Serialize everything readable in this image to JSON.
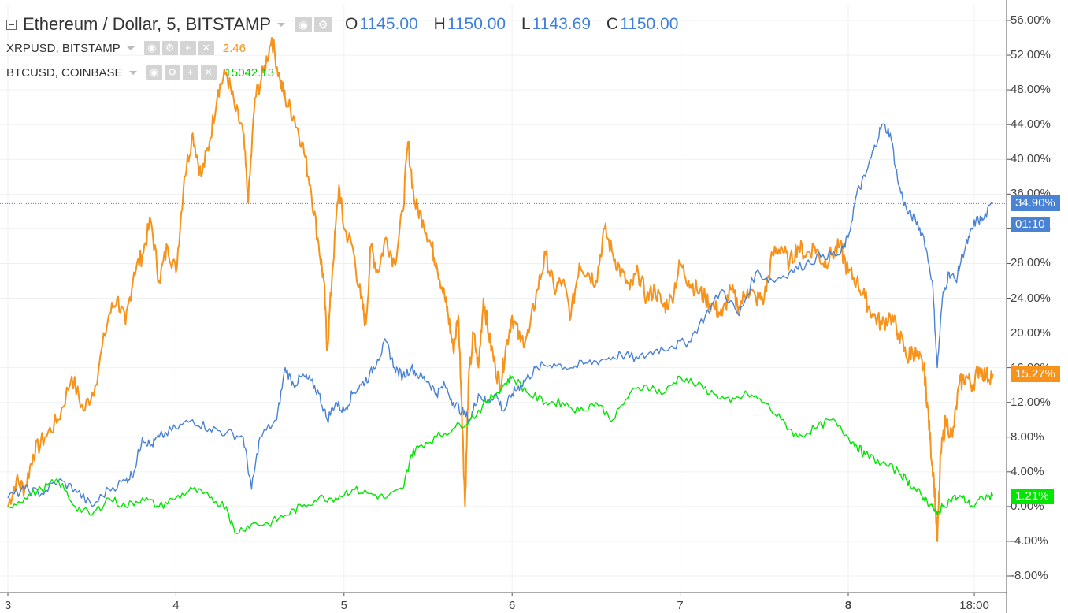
{
  "header": {
    "title": "Ethereum / Dollar, 5, BITSTAMP",
    "ohlc": [
      {
        "key": "O",
        "value": "1145.00"
      },
      {
        "key": "H",
        "value": "1150.00"
      },
      {
        "key": "L",
        "value": "1143.69"
      },
      {
        "key": "C",
        "value": "1150.00"
      }
    ]
  },
  "comparisons": [
    {
      "symbol": "XRPUSD, BITSTAMP",
      "value": "2.46",
      "color": "#f7931a"
    },
    {
      "symbol": "BTCUSD, COINBASE",
      "value": "15042.13",
      "color": "#00e600"
    }
  ],
  "price_tags": {
    "eth": "34.90%",
    "countdown": "01:10",
    "xrp": "15.27%",
    "btc": "1.21%"
  },
  "icons": [
    "eye-icon",
    "gear-icon",
    "plus-icon",
    "close-icon"
  ],
  "chart_data": {
    "type": "line",
    "y_unit": "percent change",
    "ylim": [
      -10,
      58
    ],
    "y_ticks": [
      "56.00%",
      "52.00%",
      "48.00%",
      "44.00%",
      "40.00%",
      "36.00%",
      "32.00%",
      "28.00%",
      "24.00%",
      "20.00%",
      "16.00%",
      "12.00%",
      "8.00%",
      "4.00%",
      "0.00%",
      "-4.00%",
      "-8.00%"
    ],
    "y_tick_values": [
      56,
      52,
      48,
      44,
      40,
      36,
      32,
      28,
      24,
      20,
      16,
      12,
      8,
      4,
      0,
      -4,
      -8
    ],
    "x_ticks": [
      {
        "label": "3",
        "t": 0.0
      },
      {
        "label": "4",
        "t": 1.0
      },
      {
        "label": "5",
        "t": 2.0
      },
      {
        "label": "6",
        "t": 3.0
      },
      {
        "label": "7",
        "t": 4.0
      },
      {
        "label": "8",
        "t": 5.0,
        "bold": true
      },
      {
        "label": "18:00",
        "t": 5.75
      }
    ],
    "xlim": [
      -0.04,
      5.9
    ],
    "grid": true,
    "series": [
      {
        "key": "xrp",
        "color": "#f7931a",
        "points": [
          [
            0.0,
            0
          ],
          [
            0.05,
            3
          ],
          [
            0.1,
            2
          ],
          [
            0.15,
            6
          ],
          [
            0.22,
            8
          ],
          [
            0.3,
            10
          ],
          [
            0.38,
            15
          ],
          [
            0.45,
            11
          ],
          [
            0.52,
            14
          ],
          [
            0.6,
            22
          ],
          [
            0.65,
            24
          ],
          [
            0.7,
            21
          ],
          [
            0.75,
            27
          ],
          [
            0.8,
            29
          ],
          [
            0.85,
            33
          ],
          [
            0.9,
            26
          ],
          [
            0.95,
            30
          ],
          [
            1.0,
            27
          ],
          [
            1.05,
            38
          ],
          [
            1.1,
            43
          ],
          [
            1.15,
            38
          ],
          [
            1.2,
            42
          ],
          [
            1.25,
            48
          ],
          [
            1.3,
            50
          ],
          [
            1.35,
            46
          ],
          [
            1.4,
            43
          ],
          [
            1.43,
            35
          ],
          [
            1.47,
            47
          ],
          [
            1.52,
            50
          ],
          [
            1.57,
            54
          ],
          [
            1.62,
            49
          ],
          [
            1.65,
            47
          ],
          [
            1.7,
            45
          ],
          [
            1.75,
            42
          ],
          [
            1.8,
            37
          ],
          [
            1.85,
            30
          ],
          [
            1.88,
            26
          ],
          [
            1.9,
            18
          ],
          [
            1.93,
            27
          ],
          [
            1.97,
            37
          ],
          [
            2.0,
            32
          ],
          [
            2.05,
            30
          ],
          [
            2.1,
            24
          ],
          [
            2.13,
            21
          ],
          [
            2.16,
            30
          ],
          [
            2.2,
            27
          ],
          [
            2.25,
            31
          ],
          [
            2.3,
            28
          ],
          [
            2.35,
            34
          ],
          [
            2.38,
            42
          ],
          [
            2.42,
            35
          ],
          [
            2.47,
            33
          ],
          [
            2.52,
            30
          ],
          [
            2.55,
            28
          ],
          [
            2.6,
            24
          ],
          [
            2.62,
            22
          ],
          [
            2.65,
            18
          ],
          [
            2.68,
            22
          ],
          [
            2.7,
            12
          ],
          [
            2.72,
            0
          ],
          [
            2.74,
            14
          ],
          [
            2.77,
            20
          ],
          [
            2.8,
            16
          ],
          [
            2.83,
            24
          ],
          [
            2.86,
            20
          ],
          [
            2.9,
            16
          ],
          [
            2.93,
            14
          ],
          [
            2.96,
            18
          ],
          [
            3.0,
            22
          ],
          [
            3.05,
            19
          ],
          [
            3.1,
            20
          ],
          [
            3.15,
            25
          ],
          [
            3.2,
            29
          ],
          [
            3.25,
            25
          ],
          [
            3.3,
            26
          ],
          [
            3.35,
            22
          ],
          [
            3.4,
            28
          ],
          [
            3.45,
            27
          ],
          [
            3.5,
            26
          ],
          [
            3.55,
            32
          ],
          [
            3.6,
            29
          ],
          [
            3.65,
            27
          ],
          [
            3.7,
            25
          ],
          [
            3.75,
            27
          ],
          [
            3.8,
            24
          ],
          [
            3.85,
            25
          ],
          [
            3.9,
            23
          ],
          [
            3.95,
            24
          ],
          [
            4.0,
            28
          ],
          [
            4.05,
            26
          ],
          [
            4.1,
            25
          ],
          [
            4.15,
            24
          ],
          [
            4.2,
            23
          ],
          [
            4.25,
            22
          ],
          [
            4.3,
            25
          ],
          [
            4.35,
            23
          ],
          [
            4.4,
            25
          ],
          [
            4.45,
            24
          ],
          [
            4.5,
            24
          ],
          [
            4.55,
            29
          ],
          [
            4.6,
            30
          ],
          [
            4.65,
            28
          ],
          [
            4.7,
            30
          ],
          [
            4.75,
            29
          ],
          [
            4.8,
            30
          ],
          [
            4.85,
            28
          ],
          [
            4.9,
            29
          ],
          [
            4.95,
            30
          ],
          [
            5.0,
            27
          ],
          [
            5.05,
            26
          ],
          [
            5.1,
            24
          ],
          [
            5.15,
            22
          ],
          [
            5.2,
            21
          ],
          [
            5.25,
            22
          ],
          [
            5.3,
            20
          ],
          [
            5.35,
            17
          ],
          [
            5.38,
            18
          ],
          [
            5.42,
            17
          ],
          [
            5.45,
            16
          ],
          [
            5.47,
            12
          ],
          [
            5.49,
            7
          ],
          [
            5.51,
            3
          ],
          [
            5.53,
            -4
          ],
          [
            5.55,
            6
          ],
          [
            5.58,
            10
          ],
          [
            5.62,
            8
          ],
          [
            5.66,
            14
          ],
          [
            5.7,
            15
          ],
          [
            5.74,
            14
          ],
          [
            5.78,
            16
          ],
          [
            5.82,
            15
          ],
          [
            5.86,
            15.27
          ]
        ]
      },
      {
        "key": "eth",
        "color": "#4a82d4",
        "points": [
          [
            0.0,
            1
          ],
          [
            0.1,
            2
          ],
          [
            0.2,
            1.5
          ],
          [
            0.3,
            3
          ],
          [
            0.4,
            2
          ],
          [
            0.5,
            0
          ],
          [
            0.6,
            2
          ],
          [
            0.7,
            3
          ],
          [
            0.75,
            4
          ],
          [
            0.8,
            8
          ],
          [
            0.85,
            7
          ],
          [
            0.9,
            8
          ],
          [
            1.0,
            9
          ],
          [
            1.1,
            10
          ],
          [
            1.2,
            9
          ],
          [
            1.3,
            8.5
          ],
          [
            1.4,
            8
          ],
          [
            1.45,
            2
          ],
          [
            1.5,
            8
          ],
          [
            1.6,
            10
          ],
          [
            1.65,
            16
          ],
          [
            1.7,
            14
          ],
          [
            1.75,
            15
          ],
          [
            1.8,
            14.5
          ],
          [
            1.85,
            13
          ],
          [
            1.9,
            10
          ],
          [
            1.95,
            12
          ],
          [
            2.0,
            11
          ],
          [
            2.05,
            13
          ],
          [
            2.1,
            14
          ],
          [
            2.15,
            15
          ],
          [
            2.2,
            17
          ],
          [
            2.25,
            19
          ],
          [
            2.3,
            16
          ],
          [
            2.35,
            15
          ],
          [
            2.4,
            16
          ],
          [
            2.45,
            15
          ],
          [
            2.5,
            14.5
          ],
          [
            2.55,
            13
          ],
          [
            2.6,
            14
          ],
          [
            2.65,
            12
          ],
          [
            2.7,
            11
          ],
          [
            2.75,
            10
          ],
          [
            2.8,
            13
          ],
          [
            2.85,
            12
          ],
          [
            2.9,
            13
          ],
          [
            2.95,
            11
          ],
          [
            3.0,
            13
          ],
          [
            3.05,
            14
          ],
          [
            3.1,
            15
          ],
          [
            3.15,
            16
          ],
          [
            3.25,
            16.5
          ],
          [
            3.35,
            16
          ],
          [
            3.45,
            16.5
          ],
          [
            3.55,
            17
          ],
          [
            3.65,
            17.5
          ],
          [
            3.75,
            17
          ],
          [
            3.85,
            18
          ],
          [
            3.95,
            18.5
          ],
          [
            4.05,
            19
          ],
          [
            4.15,
            22
          ],
          [
            4.25,
            25
          ],
          [
            4.35,
            22
          ],
          [
            4.45,
            27
          ],
          [
            4.55,
            26
          ],
          [
            4.65,
            27
          ],
          [
            4.75,
            28
          ],
          [
            4.85,
            29
          ],
          [
            4.95,
            29
          ],
          [
            5.0,
            31
          ],
          [
            5.05,
            36
          ],
          [
            5.1,
            38
          ],
          [
            5.15,
            41
          ],
          [
            5.2,
            44
          ],
          [
            5.25,
            43
          ],
          [
            5.3,
            37
          ],
          [
            5.35,
            34
          ],
          [
            5.4,
            33
          ],
          [
            5.45,
            31
          ],
          [
            5.5,
            26
          ],
          [
            5.53,
            16
          ],
          [
            5.56,
            24
          ],
          [
            5.6,
            27
          ],
          [
            5.64,
            26
          ],
          [
            5.68,
            29
          ],
          [
            5.72,
            31
          ],
          [
            5.76,
            33
          ],
          [
            5.8,
            33
          ],
          [
            5.86,
            34.9
          ]
        ]
      },
      {
        "key": "btc",
        "color": "#00e600",
        "points": [
          [
            0.0,
            0
          ],
          [
            0.1,
            1
          ],
          [
            0.2,
            2
          ],
          [
            0.3,
            3
          ],
          [
            0.4,
            0
          ],
          [
            0.5,
            -1
          ],
          [
            0.6,
            1
          ],
          [
            0.7,
            0
          ],
          [
            0.8,
            1
          ],
          [
            0.9,
            0
          ],
          [
            1.0,
            1
          ],
          [
            1.1,
            2
          ],
          [
            1.2,
            1
          ],
          [
            1.3,
            0
          ],
          [
            1.35,
            -3
          ],
          [
            1.45,
            -2
          ],
          [
            1.55,
            -2
          ],
          [
            1.65,
            -1
          ],
          [
            1.75,
            0
          ],
          [
            1.85,
            1
          ],
          [
            1.95,
            1
          ],
          [
            2.05,
            2
          ],
          [
            2.15,
            1.5
          ],
          [
            2.25,
            1
          ],
          [
            2.35,
            2
          ],
          [
            2.4,
            6
          ],
          [
            2.45,
            7
          ],
          [
            2.55,
            8
          ],
          [
            2.65,
            9
          ],
          [
            2.75,
            10
          ],
          [
            2.85,
            12
          ],
          [
            2.95,
            14
          ],
          [
            3.0,
            15
          ],
          [
            3.1,
            13
          ],
          [
            3.2,
            12
          ],
          [
            3.3,
            12
          ],
          [
            3.4,
            11
          ],
          [
            3.5,
            12
          ],
          [
            3.6,
            10
          ],
          [
            3.7,
            13
          ],
          [
            3.8,
            14
          ],
          [
            3.9,
            13
          ],
          [
            4.0,
            15
          ],
          [
            4.1,
            14
          ],
          [
            4.2,
            13
          ],
          [
            4.3,
            12
          ],
          [
            4.4,
            13
          ],
          [
            4.5,
            12
          ],
          [
            4.6,
            10
          ],
          [
            4.7,
            8
          ],
          [
            4.8,
            9
          ],
          [
            4.9,
            10
          ],
          [
            5.0,
            8
          ],
          [
            5.05,
            7
          ],
          [
            5.1,
            6
          ],
          [
            5.2,
            5
          ],
          [
            5.3,
            4
          ],
          [
            5.35,
            3
          ],
          [
            5.4,
            2
          ],
          [
            5.45,
            1
          ],
          [
            5.5,
            0
          ],
          [
            5.53,
            -1
          ],
          [
            5.56,
            0
          ],
          [
            5.62,
            1
          ],
          [
            5.68,
            1
          ],
          [
            5.74,
            0
          ],
          [
            5.8,
            1
          ],
          [
            5.86,
            1.21
          ]
        ]
      }
    ]
  }
}
